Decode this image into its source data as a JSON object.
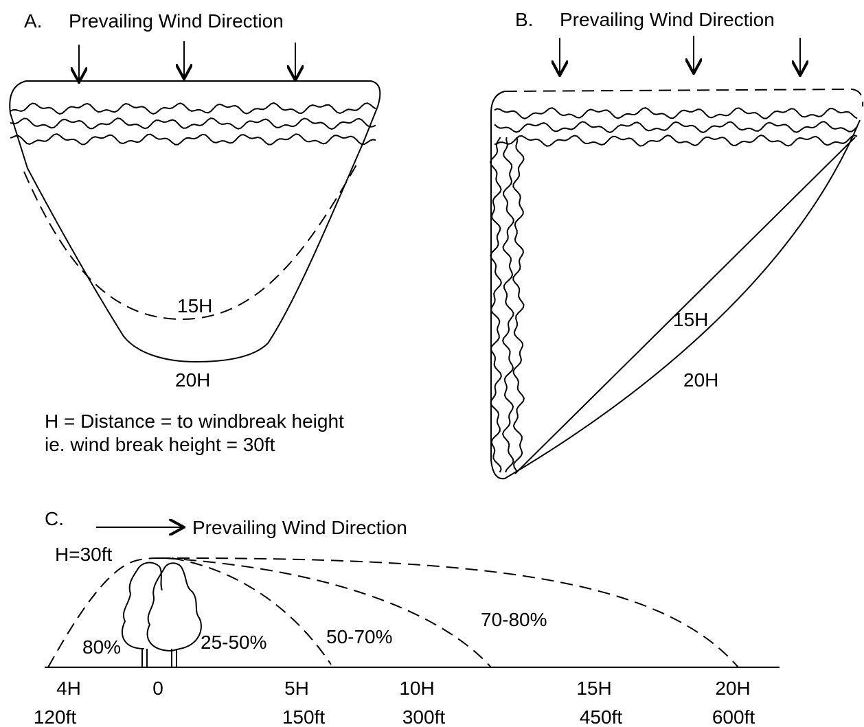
{
  "panel_a": {
    "label": "A.",
    "heading": "Prevailing Wind Direction",
    "inner_contour": "15H",
    "outer_contour": "20H",
    "notes": [
      "H = Distance = to windbreak height",
      "ie. wind break height = 30ft"
    ]
  },
  "panel_b": {
    "label": "B.",
    "heading": "Prevailing Wind Direction",
    "inner_contour": "15H",
    "outer_contour": "20H"
  },
  "panel_c": {
    "label": "C.",
    "heading": "Prevailing Wind Direction",
    "height_label": "H=30ft",
    "zones": [
      "80%",
      "25-50%",
      "50-70%",
      "70-80%"
    ],
    "distance_labels": [
      {
        "h": "4H",
        "ft": "120ft"
      },
      {
        "h": "0"
      },
      {
        "h": "5H",
        "ft": "150ft"
      },
      {
        "h": "10H",
        "ft": "300ft"
      },
      {
        "h": "15H",
        "ft": "450ft"
      },
      {
        "h": "20H",
        "ft": "600ft"
      }
    ]
  }
}
